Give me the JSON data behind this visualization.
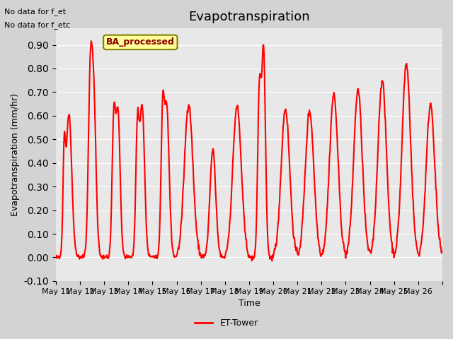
{
  "title": "Evapotranspiration",
  "ylabel": "Evapotranspiration (mm/hr)",
  "xlabel": "Time",
  "ylim": [
    -0.1,
    0.97
  ],
  "yticks": [
    -0.1,
    0.0,
    0.1,
    0.2,
    0.3,
    0.4,
    0.5,
    0.6,
    0.7,
    0.8,
    0.9
  ],
  "line_color": "#ff0000",
  "line_width": 1.5,
  "bg_color": "#e8e8e8",
  "plot_bg_color": "#e8e8e8",
  "legend_label": "ET-Tower",
  "top_left_text1": "No data for f_et",
  "top_left_text2": "No data for f_etc",
  "box_label": "BA_processed",
  "box_facecolor": "#ffff99",
  "box_edgecolor": "#808000",
  "n_days": 16,
  "xtick_positions": [
    0,
    1,
    2,
    3,
    4,
    5,
    6,
    7,
    8,
    9,
    10,
    11,
    12,
    13,
    14,
    15,
    16
  ],
  "xtick_labels": [
    "May 11",
    "May 12",
    "May 13",
    "May 14",
    "May 15",
    "May 16",
    "May 17",
    "May 18",
    "May 19",
    "May 20",
    "May 21",
    "May 22",
    "May 23",
    "May 24",
    "May 25",
    "May 26",
    ""
  ]
}
